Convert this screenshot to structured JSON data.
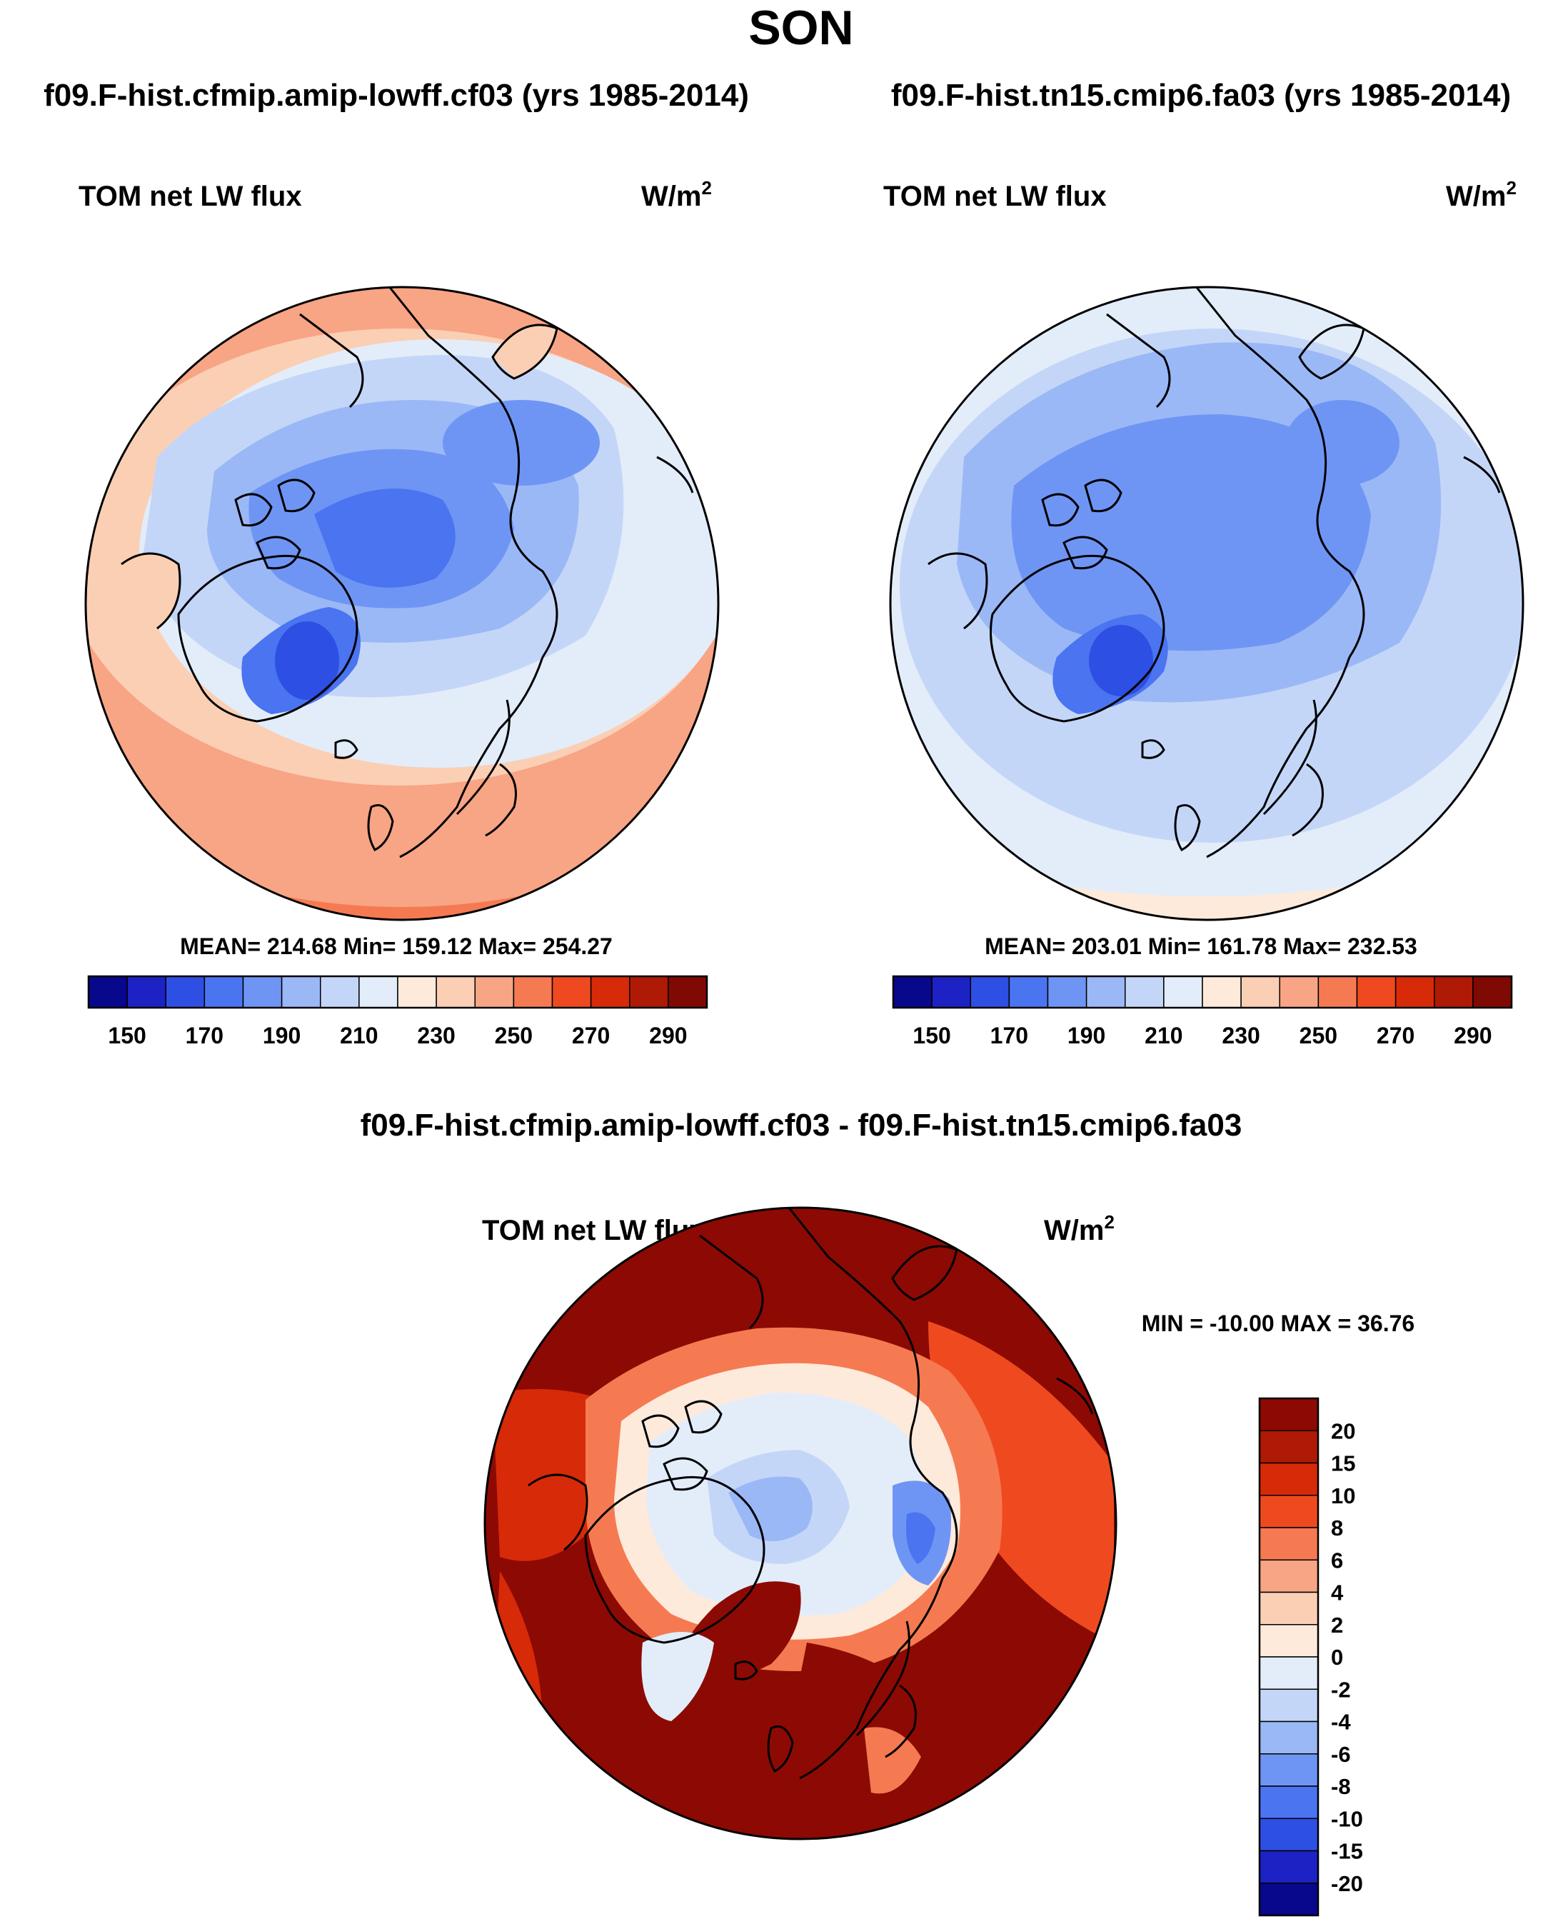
{
  "figure_title": "SON",
  "colors": {
    "model_scale": [
      "#08088c",
      "#1c22c4",
      "#2e4fe3",
      "#4a74f0",
      "#6f95f4",
      "#9bb8f6",
      "#c4d6f8",
      "#e3edfa",
      "#fdeadb",
      "#fbcfb4",
      "#f7a585",
      "#f57a52",
      "#ef4a1f",
      "#d72a08",
      "#ae1a05",
      "#7f0a03"
    ],
    "diff_scale": [
      "#08088c",
      "#1c22c4",
      "#2e4fe3",
      "#4a74f0",
      "#6f95f4",
      "#9bb8f6",
      "#c4d6f8",
      "#e3edfa",
      "#fdeadb",
      "#fbcfb4",
      "#f7a585",
      "#f57a52",
      "#ef4a1f",
      "#d72a08",
      "#ae1a05",
      "#8c0a03"
    ]
  },
  "panels": [
    {
      "case": "f09.F-hist.cfmip.amip-lowff.cf03 (yrs 1985-2014)",
      "variable": "TOM net LW flux",
      "units_base": "W/m",
      "units_exp": "2",
      "stats": "MEAN= 214.68  Min= 159.12  Max= 254.27",
      "colorbar_labels": [
        "150",
        "170",
        "190",
        "210",
        "230",
        "250",
        "270",
        "290"
      ]
    },
    {
      "case": "f09.F-hist.tn15.cmip6.fa03 (yrs 1985-2014)",
      "variable": "TOM net LW flux",
      "units_base": "W/m",
      "units_exp": "2",
      "stats": "MEAN= 203.01  Min= 161.78  Max= 232.53",
      "colorbar_labels": [
        "150",
        "170",
        "190",
        "210",
        "230",
        "250",
        "270",
        "290"
      ]
    }
  ],
  "difference": {
    "case": "f09.F-hist.cfmip.amip-lowff.cf03 - f09.F-hist.tn15.cmip6.fa03",
    "variable": "TOM net LW flux",
    "units_base": "W/m",
    "units_exp": "2",
    "stats": "MIN = -10.00 MAX =  36.76",
    "colorbar_labels": [
      "20",
      "15",
      "10",
      "8",
      "6",
      "4",
      "2",
      "0",
      "-2",
      "-4",
      "-6",
      "-8",
      "-10",
      "-15",
      "-20"
    ]
  }
}
